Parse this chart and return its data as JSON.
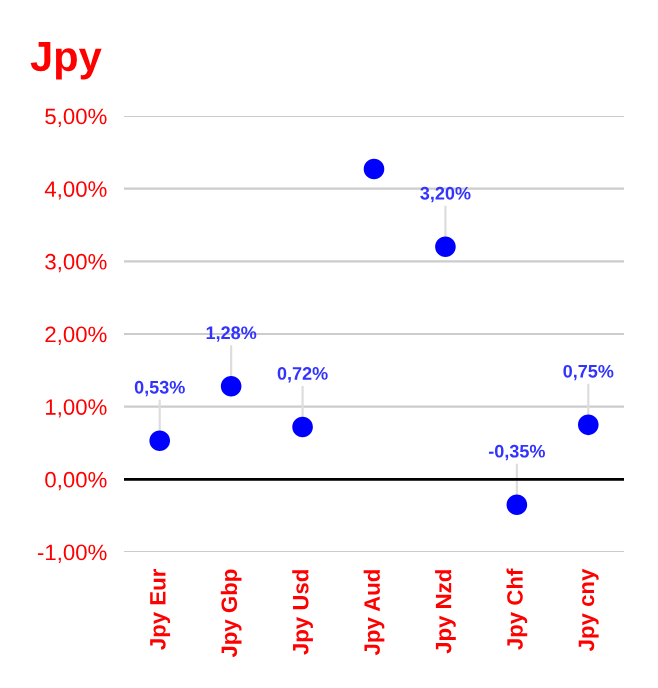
{
  "chart_data": {
    "type": "scatter",
    "title": "Jpy",
    "categories": [
      "Jpy Eur",
      "Jpy Gbp",
      "Jpy Usd",
      "Jpy Aud",
      "Jpy Nzd",
      "Jpy Chf",
      "Jpy cny"
    ],
    "series": [
      {
        "color": "#0000ff",
        "values": [
          0.53,
          1.28,
          0.72,
          4.27,
          3.2,
          -0.35,
          0.75
        ],
        "value_labels": [
          "0,53%",
          "1,28%",
          "0,72%",
          null,
          "3,20%",
          "-0,35%",
          "0,75%"
        ]
      }
    ],
    "ylim": [
      -1,
      5
    ],
    "yticks": [
      {
        "value": -1,
        "label": "-1,00%"
      },
      {
        "value": 0,
        "label": "0,00%"
      },
      {
        "value": 1,
        "label": "1,00%"
      },
      {
        "value": 2,
        "label": "2,00%"
      },
      {
        "value": 3,
        "label": "3,00%"
      },
      {
        "value": 4,
        "label": "4,00%"
      },
      {
        "value": 5,
        "label": "5,00%"
      }
    ],
    "ref_lines": [
      {
        "axis": "y",
        "value": 0,
        "color": "#000000"
      }
    ],
    "grid": "y",
    "marker": "circle",
    "legend": false
  }
}
